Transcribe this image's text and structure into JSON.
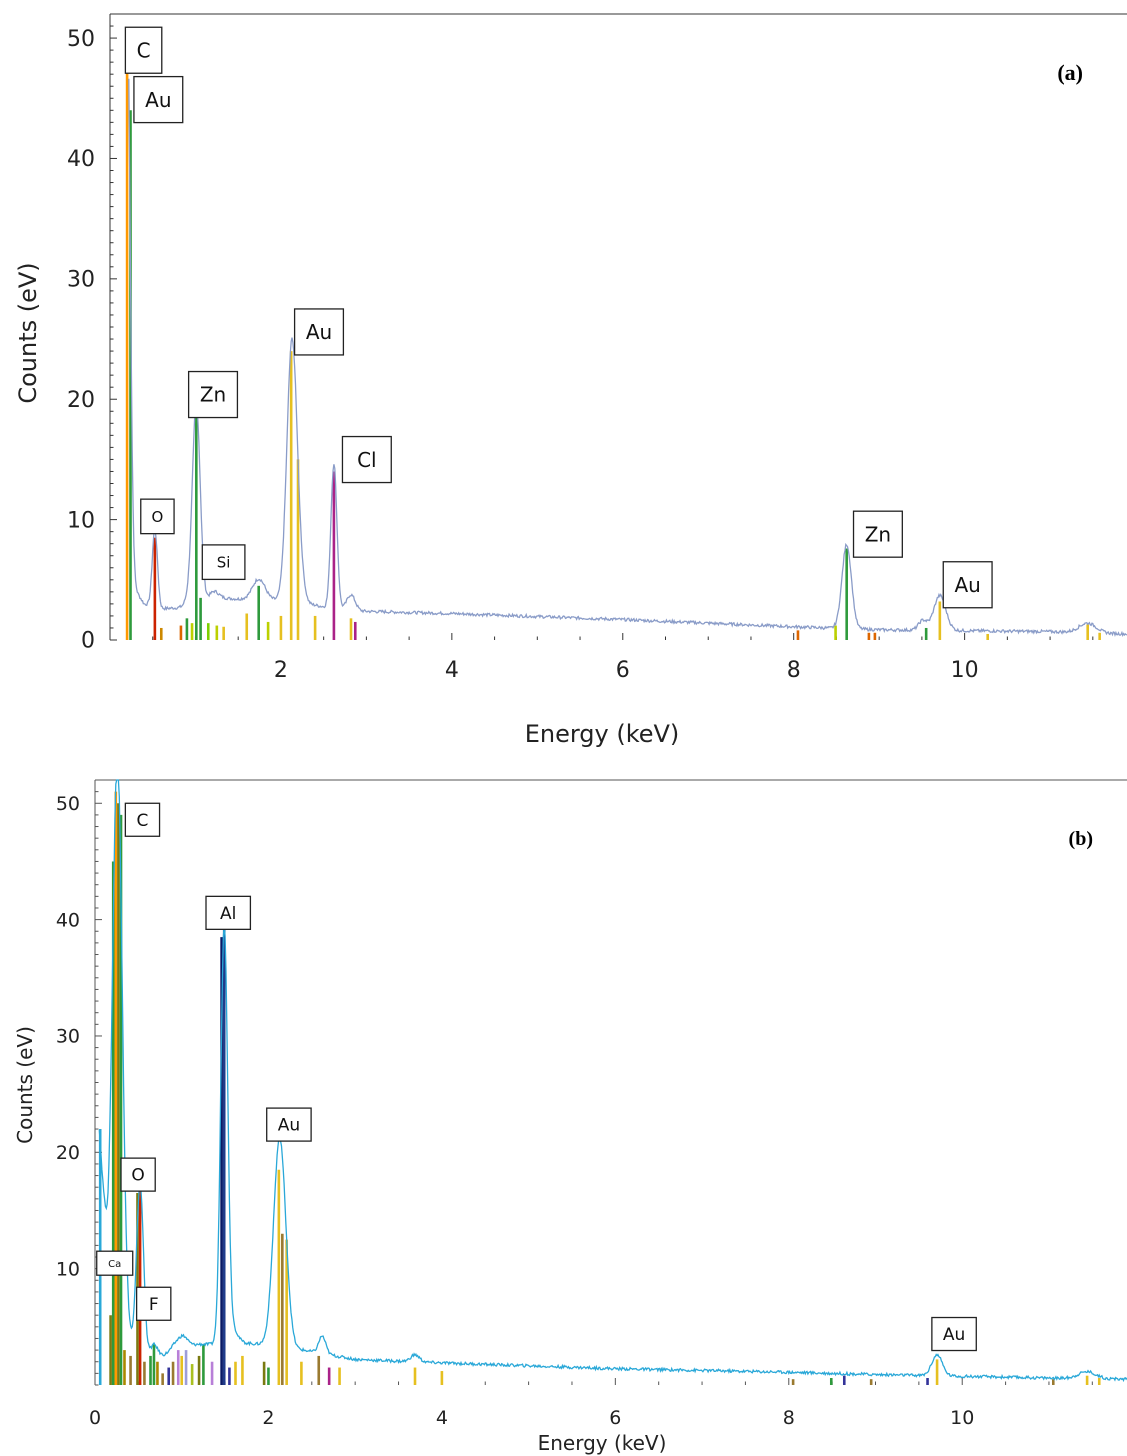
{
  "chart_data": [
    {
      "type": "line",
      "panel_label": "(a)",
      "xlabel": "Energy (keV)",
      "ylabel": "Counts (eV)",
      "xlim": [
        0,
        11.9
      ],
      "ylim": [
        0,
        52
      ],
      "x_ticks": [
        "2",
        "4",
        "6",
        "8",
        "10"
      ],
      "x_tick_values": [
        2,
        4,
        6,
        8,
        10
      ],
      "y_ticks": [
        "0",
        "10",
        "20",
        "30",
        "40",
        "50"
      ],
      "y_tick_values": [
        0,
        10,
        20,
        30,
        40,
        50
      ],
      "x_minor_step": 0.5,
      "y_minor_step": 1,
      "line_color": "#8a9cc8",
      "frame_color": "#333333",
      "background": "baseline",
      "bg_points": [
        [
          0.22,
          5
        ],
        [
          0.4,
          3
        ],
        [
          0.6,
          2.6
        ],
        [
          0.85,
          2.7
        ],
        [
          1.0,
          3.3
        ],
        [
          1.3,
          3.5
        ],
        [
          1.5,
          3.4
        ],
        [
          1.8,
          3.5
        ],
        [
          2.0,
          3.2
        ],
        [
          2.4,
          2.9
        ],
        [
          2.6,
          2.6
        ],
        [
          2.9,
          2.4
        ],
        [
          4,
          2.2
        ],
        [
          6,
          1.7
        ],
        [
          8,
          1.1
        ],
        [
          9,
          0.85
        ],
        [
          11,
          0.7
        ],
        [
          11.9,
          0.5
        ]
      ],
      "peaks": [
        {
          "x": 0.2,
          "h": 49,
          "w": 0.035
        },
        {
          "x": 0.525,
          "h": 6.5,
          "w": 0.03
        },
        {
          "x": 0.93,
          "h": 0.6,
          "w": 0.05
        },
        {
          "x": 1.01,
          "h": 16.3,
          "w": 0.045
        },
        {
          "x": 1.22,
          "h": 0.6,
          "w": 0.05
        },
        {
          "x": 1.74,
          "h": 1.6,
          "w": 0.07
        },
        {
          "x": 2.13,
          "h": 21.8,
          "w": 0.06
        },
        {
          "x": 2.23,
          "h": 1.2,
          "w": 0.05
        },
        {
          "x": 2.62,
          "h": 12.1,
          "w": 0.035
        },
        {
          "x": 2.82,
          "h": 1.3,
          "w": 0.05
        },
        {
          "x": 8.62,
          "h": 7.0,
          "w": 0.055
        },
        {
          "x": 9.51,
          "h": 0.8,
          "w": 0.05
        },
        {
          "x": 9.71,
          "h": 2.9,
          "w": 0.07
        },
        {
          "x": 11.44,
          "h": 0.8,
          "w": 0.1
        }
      ],
      "element_lines": [
        {
          "x": 0.2,
          "h": 49,
          "color": "#ff9900"
        },
        {
          "x": 0.24,
          "h": 44,
          "color": "#2e9a3c"
        },
        {
          "x": 0.525,
          "h": 8.5,
          "color": "#cc2200"
        },
        {
          "x": 0.6,
          "h": 1.0,
          "color": "#cc8800"
        },
        {
          "x": 0.83,
          "h": 1.2,
          "color": "#dd6600"
        },
        {
          "x": 0.9,
          "h": 1.8,
          "color": "#2e9a3c"
        },
        {
          "x": 0.96,
          "h": 1.4,
          "color": "#bcd000"
        },
        {
          "x": 1.01,
          "h": 19.5,
          "color": "#2e9a3c"
        },
        {
          "x": 1.06,
          "h": 3.5,
          "color": "#2e9a3c"
        },
        {
          "x": 1.15,
          "h": 1.4,
          "color": "#7dd000"
        },
        {
          "x": 1.25,
          "h": 1.2,
          "color": "#bcd000"
        },
        {
          "x": 1.33,
          "h": 1.1,
          "color": "#e6c020"
        },
        {
          "x": 1.6,
          "h": 2.2,
          "color": "#e6c020"
        },
        {
          "x": 1.74,
          "h": 4.5,
          "color": "#2e9a3c"
        },
        {
          "x": 1.85,
          "h": 1.5,
          "color": "#bcd000"
        },
        {
          "x": 2.0,
          "h": 2.0,
          "color": "#e6c020"
        },
        {
          "x": 2.12,
          "h": 24.0,
          "color": "#e6c020"
        },
        {
          "x": 2.2,
          "h": 15.0,
          "color": "#e6c020"
        },
        {
          "x": 2.4,
          "h": 2.0,
          "color": "#e6c020"
        },
        {
          "x": 2.62,
          "h": 14.0,
          "color": "#aa2288"
        },
        {
          "x": 2.82,
          "h": 1.8,
          "color": "#e6c020"
        },
        {
          "x": 2.87,
          "h": 1.5,
          "color": "#aa2288"
        },
        {
          "x": 8.05,
          "h": 0.8,
          "color": "#dd6600"
        },
        {
          "x": 8.49,
          "h": 1.2,
          "color": "#bcd000"
        },
        {
          "x": 8.62,
          "h": 7.6,
          "color": "#2e9a3c"
        },
        {
          "x": 8.88,
          "h": 0.6,
          "color": "#dd6600"
        },
        {
          "x": 8.95,
          "h": 0.6,
          "color": "#dd6600"
        },
        {
          "x": 9.55,
          "h": 1.0,
          "color": "#2e9a3c"
        },
        {
          "x": 9.71,
          "h": 3.2,
          "color": "#e6c020"
        },
        {
          "x": 10.27,
          "h": 0.5,
          "color": "#e6c020"
        },
        {
          "x": 11.44,
          "h": 1.3,
          "color": "#e6c020"
        },
        {
          "x": 11.58,
          "h": 0.6,
          "color": "#e6c020"
        }
      ],
      "annotations": [
        {
          "text": "C",
          "x": 0.18,
          "y": 50.9,
          "font": 20
        },
        {
          "text": "Au",
          "x": 0.28,
          "y": 46.8,
          "font": 20
        },
        {
          "text": "Zn",
          "x": 0.92,
          "y": 22.3,
          "font": 20
        },
        {
          "text": "Au",
          "x": 2.16,
          "y": 27.5,
          "font": 20
        },
        {
          "text": "Cl",
          "x": 2.72,
          "y": 16.9,
          "font": 20
        },
        {
          "text": "O",
          "x": 0.36,
          "y": 11.7,
          "font": 15
        },
        {
          "text": "Si",
          "x": 1.08,
          "y": 7.9,
          "font": 15
        },
        {
          "text": "Zn",
          "x": 8.7,
          "y": 10.7,
          "font": 20
        },
        {
          "text": "Au",
          "x": 9.75,
          "y": 6.5,
          "font": 20
        }
      ]
    },
    {
      "type": "line",
      "panel_label": "(b)",
      "xlabel": "Energy (keV)",
      "ylabel": "Counts (eV)",
      "xlim": [
        0,
        11.9
      ],
      "ylim": [
        0,
        52
      ],
      "x_ticks": [
        "0",
        "2",
        "4",
        "6",
        "8",
        "10"
      ],
      "x_tick_values": [
        0,
        2,
        4,
        6,
        8,
        10
      ],
      "y_ticks": [
        "10",
        "20",
        "30",
        "40",
        "50"
      ],
      "y_tick_values": [
        10,
        20,
        30,
        40,
        50
      ],
      "x_minor_step": 0.5,
      "y_minor_step": 1,
      "line_color": "#2aa8d8",
      "frame_color": "#555555",
      "background": "baseline",
      "bg_points": [
        [
          0.05,
          22
        ],
        [
          0.15,
          10
        ],
        [
          0.35,
          4
        ],
        [
          0.6,
          2.4
        ],
        [
          0.8,
          2.6
        ],
        [
          1.0,
          3.3
        ],
        [
          1.2,
          3.5
        ],
        [
          1.35,
          3.5
        ],
        [
          1.6,
          3.7
        ],
        [
          1.9,
          3.5
        ],
        [
          2.4,
          3.0
        ],
        [
          2.7,
          2.6
        ],
        [
          3.0,
          2.2
        ],
        [
          4,
          1.9
        ],
        [
          6,
          1.4
        ],
        [
          8,
          1.1
        ],
        [
          9,
          0.9
        ],
        [
          11,
          0.6
        ],
        [
          11.9,
          0.5
        ]
      ],
      "peaks": [
        {
          "x": 0.26,
          "h": 47.5,
          "w": 0.055
        },
        {
          "x": 0.52,
          "h": 14.4,
          "w": 0.04
        },
        {
          "x": 0.68,
          "h": 1.0,
          "w": 0.04
        },
        {
          "x": 0.93,
          "h": 0.5,
          "w": 0.05
        },
        {
          "x": 1.02,
          "h": 0.8,
          "w": 0.05
        },
        {
          "x": 1.49,
          "h": 36.0,
          "w": 0.04
        },
        {
          "x": 1.6,
          "h": 1.0,
          "w": 0.05
        },
        {
          "x": 2.13,
          "h": 18.0,
          "w": 0.07
        },
        {
          "x": 2.62,
          "h": 1.5,
          "w": 0.04
        },
        {
          "x": 3.69,
          "h": 0.6,
          "w": 0.05
        },
        {
          "x": 9.71,
          "h": 1.8,
          "w": 0.06
        },
        {
          "x": 11.44,
          "h": 0.6,
          "w": 0.1
        }
      ],
      "element_lines": [
        {
          "x": 0.06,
          "h": 22,
          "color": "#2aa8d8"
        },
        {
          "x": 0.18,
          "h": 6,
          "color": "#7a7a10"
        },
        {
          "x": 0.21,
          "h": 45,
          "color": "#2e9a3c"
        },
        {
          "x": 0.24,
          "h": 51,
          "color": "#ff9900"
        },
        {
          "x": 0.27,
          "h": 50,
          "color": "#7a7a10"
        },
        {
          "x": 0.3,
          "h": 49,
          "color": "#2e9a3c"
        },
        {
          "x": 0.34,
          "h": 3.0,
          "color": "#aa8800"
        },
        {
          "x": 0.41,
          "h": 2.5,
          "color": "#9a7a30"
        },
        {
          "x": 0.49,
          "h": 16.5,
          "color": "#7a7a10"
        },
        {
          "x": 0.52,
          "h": 17.5,
          "color": "#cc2200"
        },
        {
          "x": 0.57,
          "h": 2.0,
          "color": "#9a7a30"
        },
        {
          "x": 0.64,
          "h": 2.5,
          "color": "#2e9a3c"
        },
        {
          "x": 0.68,
          "h": 3.5,
          "color": "#2e9a3c"
        },
        {
          "x": 0.72,
          "h": 2.0,
          "color": "#aa8800"
        },
        {
          "x": 0.78,
          "h": 1.0,
          "color": "#9a7a30"
        },
        {
          "x": 0.85,
          "h": 1.5,
          "color": "#333399"
        },
        {
          "x": 0.9,
          "h": 2.0,
          "color": "#9a7a30"
        },
        {
          "x": 0.96,
          "h": 3.0,
          "color": "#b87fd8"
        },
        {
          "x": 1.0,
          "h": 2.5,
          "color": "#e6c020"
        },
        {
          "x": 1.05,
          "h": 3.0,
          "color": "#9d9dd8"
        },
        {
          "x": 1.12,
          "h": 1.8,
          "color": "#aac020"
        },
        {
          "x": 1.2,
          "h": 2.5,
          "color": "#7a7a10"
        },
        {
          "x": 1.25,
          "h": 3.5,
          "color": "#2e9a3c"
        },
        {
          "x": 1.35,
          "h": 2.0,
          "color": "#b87fd8"
        },
        {
          "x": 1.46,
          "h": 38.5,
          "color": "#0a1a66"
        },
        {
          "x": 1.49,
          "h": 39.5,
          "color": "#1f3b8a"
        },
        {
          "x": 1.55,
          "h": 1.5,
          "color": "#333399"
        },
        {
          "x": 1.62,
          "h": 2.0,
          "color": "#e6c020"
        },
        {
          "x": 1.7,
          "h": 2.5,
          "color": "#e6c020"
        },
        {
          "x": 1.95,
          "h": 2.0,
          "color": "#7a7a10"
        },
        {
          "x": 2.0,
          "h": 1.5,
          "color": "#2e9a3c"
        },
        {
          "x": 2.12,
          "h": 18.5,
          "color": "#e6c020"
        },
        {
          "x": 2.16,
          "h": 13.0,
          "color": "#9a7a30"
        },
        {
          "x": 2.21,
          "h": 12.5,
          "color": "#e6c020"
        },
        {
          "x": 2.38,
          "h": 2.0,
          "color": "#e6c020"
        },
        {
          "x": 2.58,
          "h": 2.5,
          "color": "#9a7a30"
        },
        {
          "x": 2.7,
          "h": 1.5,
          "color": "#aa2288"
        },
        {
          "x": 2.82,
          "h": 1.5,
          "color": "#e6c020"
        },
        {
          "x": 3.69,
          "h": 1.5,
          "color": "#e6c020"
        },
        {
          "x": 4.0,
          "h": 1.2,
          "color": "#e6c020"
        },
        {
          "x": 8.05,
          "h": 0.5,
          "color": "#9a7a30"
        },
        {
          "x": 8.49,
          "h": 0.6,
          "color": "#2e9a3c"
        },
        {
          "x": 8.64,
          "h": 0.8,
          "color": "#333399"
        },
        {
          "x": 8.95,
          "h": 0.5,
          "color": "#9a7a30"
        },
        {
          "x": 9.6,
          "h": 0.6,
          "color": "#333399"
        },
        {
          "x": 9.71,
          "h": 2.2,
          "color": "#e6c020"
        },
        {
          "x": 11.05,
          "h": 0.5,
          "color": "#9a7a30"
        },
        {
          "x": 11.44,
          "h": 0.8,
          "color": "#e6c020"
        },
        {
          "x": 11.58,
          "h": 0.6,
          "color": "#e6c020"
        }
      ],
      "annotations": [
        {
          "text": "C",
          "x": 0.35,
          "y": 50.0,
          "font": 17
        },
        {
          "text": "Al",
          "x": 1.28,
          "y": 42.0,
          "font": 17
        },
        {
          "text": "Au",
          "x": 1.98,
          "y": 23.8,
          "font": 17
        },
        {
          "text": "O",
          "x": 0.3,
          "y": 19.5,
          "font": 17
        },
        {
          "text": "Ca",
          "x": 0.02,
          "y": 11.5,
          "font": 10
        },
        {
          "text": "F",
          "x": 0.48,
          "y": 8.4,
          "font": 17
        },
        {
          "text": "Au",
          "x": 9.65,
          "y": 5.8,
          "font": 17
        }
      ]
    }
  ]
}
